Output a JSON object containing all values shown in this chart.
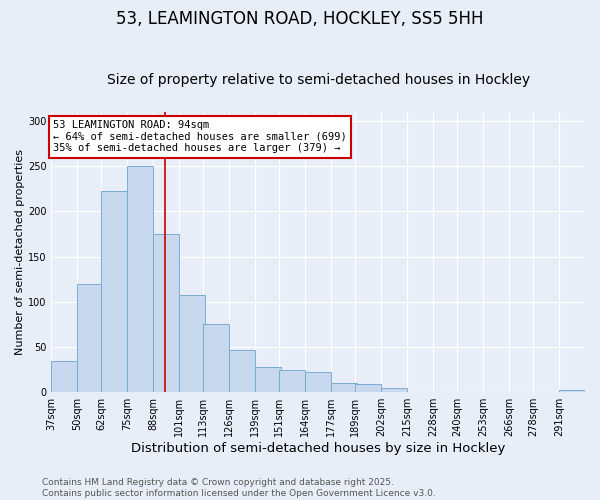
{
  "title": "53, LEAMINGTON ROAD, HOCKLEY, SS5 5HH",
  "subtitle": "Size of property relative to semi-detached houses in Hockley",
  "xlabel": "Distribution of semi-detached houses by size in Hockley",
  "ylabel": "Number of semi-detached properties",
  "bin_labels": [
    "37sqm",
    "50sqm",
    "62sqm",
    "75sqm",
    "88sqm",
    "101sqm",
    "113sqm",
    "126sqm",
    "139sqm",
    "151sqm",
    "164sqm",
    "177sqm",
    "189sqm",
    "202sqm",
    "215sqm",
    "228sqm",
    "240sqm",
    "253sqm",
    "266sqm",
    "278sqm",
    "291sqm"
  ],
  "bin_left_edges": [
    37,
    50,
    62,
    75,
    88,
    101,
    113,
    126,
    139,
    151,
    164,
    177,
    189,
    202,
    215,
    228,
    240,
    253,
    266,
    278,
    291
  ],
  "bin_width": 13,
  "bar_heights": [
    35,
    120,
    222,
    250,
    175,
    108,
    75,
    47,
    28,
    25,
    22,
    10,
    9,
    5,
    0,
    0,
    0,
    0,
    0,
    0,
    2
  ],
  "bar_color": "#c8d9ef",
  "bar_edge_color": "#7aadd4",
  "subject_value": 94,
  "subject_line_color": "#cc0000",
  "annotation_text": "53 LEAMINGTON ROAD: 94sqm\n← 64% of semi-detached houses are smaller (699)\n35% of semi-detached houses are larger (379) →",
  "annotation_box_color": "#ffffff",
  "annotation_box_edge_color": "#cc0000",
  "ylim": [
    0,
    310
  ],
  "xlim_left": 37,
  "xlim_right": 304,
  "background_color": "#e8eef8",
  "grid_color": "#ffffff",
  "footer_text": "Contains HM Land Registry data © Crown copyright and database right 2025.\nContains public sector information licensed under the Open Government Licence v3.0.",
  "title_fontsize": 12,
  "subtitle_fontsize": 10,
  "xlabel_fontsize": 9.5,
  "ylabel_fontsize": 8,
  "tick_fontsize": 7,
  "annot_fontsize": 7.5,
  "footer_fontsize": 6.5
}
